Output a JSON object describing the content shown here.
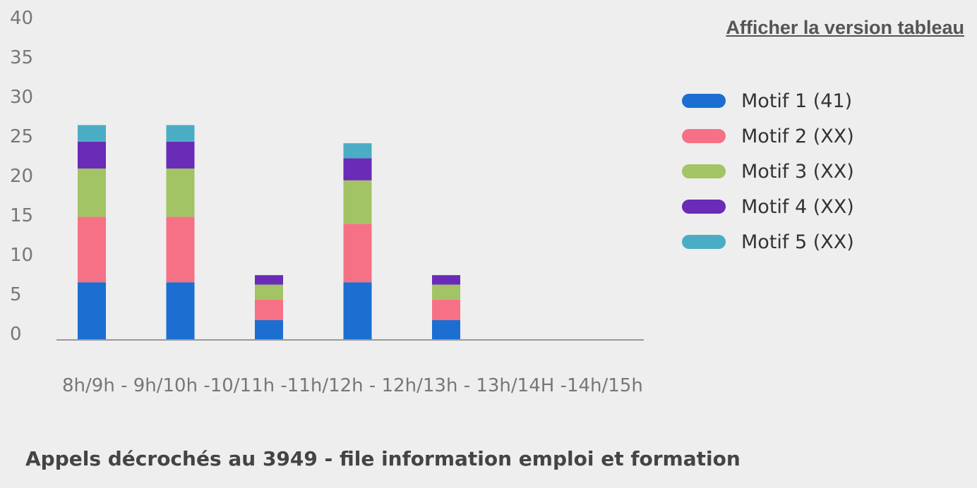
{
  "table_link": "Afficher la version tableau",
  "footer_title": "Appels décrochés au 3949 - file information emploi et formation",
  "x_axis_text": "8h/9h - 9h/10h -10/11h -11h/12h - 12h/13h - 13h/14H -14h/15h",
  "chart_data": {
    "type": "bar",
    "stacked": true,
    "title": "",
    "xlabel": "",
    "ylabel": "",
    "ylim": [
      0,
      40
    ],
    "yticks": [
      0,
      5,
      10,
      15,
      20,
      25,
      30,
      35,
      40
    ],
    "grid": false,
    "legend_position": "right",
    "categories": [
      "8h/9h",
      "9h/10h",
      "10/11h",
      "11h/12h",
      "12h/13h",
      "13h/14H",
      "14h/15h"
    ],
    "series": [
      {
        "name": "Motif 1 (41)",
        "color": "#1c6fd1",
        "values": [
          7.3,
          7.3,
          2.5,
          7.3,
          2.5,
          0,
          0
        ]
      },
      {
        "name": "Motif 2 (XX)",
        "color": "#f77186",
        "values": [
          8.3,
          8.3,
          2.6,
          7.4,
          2.6,
          0,
          0
        ]
      },
      {
        "name": "Motif 3 (XX)",
        "color": "#a2c465",
        "values": [
          6.1,
          6.1,
          1.9,
          5.5,
          1.9,
          0,
          0
        ]
      },
      {
        "name": "Motif 4 (XX)",
        "color": "#6a2bb7",
        "values": [
          3.4,
          3.4,
          1.2,
          2.8,
          1.2,
          0,
          0
        ]
      },
      {
        "name": "Motif 5 (XX)",
        "color": "#4badc5",
        "values": [
          2.1,
          2.1,
          0,
          1.9,
          0,
          0,
          0
        ]
      }
    ]
  }
}
